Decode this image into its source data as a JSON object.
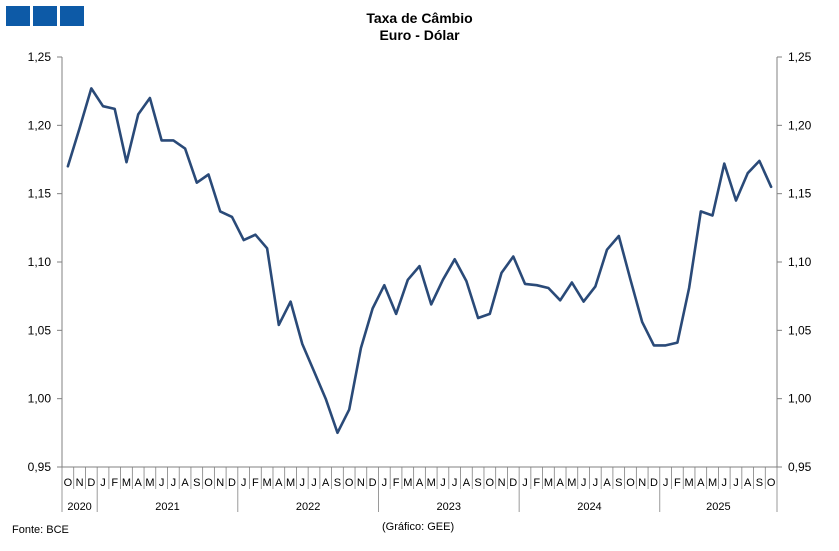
{
  "header": {
    "logo_color": "#0D5AA7"
  },
  "chart_data": {
    "type": "line",
    "title": "Taxa de Câmbio",
    "subtitle": "Euro - Dólar",
    "ylim": [
      0.95,
      1.25
    ],
    "yticks": [
      "0,95",
      "1,00",
      "1,05",
      "1,10",
      "1,15",
      "1,20",
      "1,25"
    ],
    "ytick_values": [
      0.95,
      1.0,
      1.05,
      1.1,
      1.15,
      1.2,
      1.25
    ],
    "grid": false,
    "line_color": "#2A4A78",
    "month_labels": [
      "O",
      "N",
      "D",
      "J",
      "F",
      "M",
      "A",
      "M",
      "J",
      "J",
      "A",
      "S",
      "O",
      "N",
      "D",
      "J",
      "F",
      "M",
      "A",
      "M",
      "J",
      "J",
      "A",
      "S",
      "O",
      "N",
      "D",
      "J",
      "F",
      "M",
      "A",
      "M",
      "J",
      "J",
      "A",
      "S",
      "O",
      "N",
      "D",
      "J",
      "F",
      "M",
      "A",
      "M",
      "J",
      "J",
      "A",
      "S",
      "O",
      "N",
      "D",
      "J",
      "F",
      "M",
      "A",
      "M",
      "J",
      "J",
      "A",
      "S",
      "O"
    ],
    "years": [
      {
        "label": "2020",
        "start": 0,
        "end": 2
      },
      {
        "label": "2021",
        "start": 3,
        "end": 14
      },
      {
        "label": "2022",
        "start": 15,
        "end": 26
      },
      {
        "label": "2023",
        "start": 27,
        "end": 38
      },
      {
        "label": "2024",
        "start": 39,
        "end": 50
      },
      {
        "label": "2025",
        "start": 51,
        "end": 60
      }
    ],
    "series": [
      {
        "values": [
          1.17,
          1.198,
          1.227,
          1.214,
          1.212,
          1.173,
          1.208,
          1.22,
          1.189,
          1.189,
          1.183,
          1.158,
          1.164,
          1.137,
          1.133,
          1.116,
          1.12,
          1.11,
          1.054,
          1.071,
          1.04,
          1.02,
          1.0,
          0.975,
          0.992,
          1.037,
          1.066,
          1.083,
          1.062,
          1.087,
          1.097,
          1.069,
          1.087,
          1.102,
          1.086,
          1.059,
          1.062,
          1.092,
          1.104,
          1.084,
          1.083,
          1.081,
          1.072,
          1.085,
          1.071,
          1.082,
          1.109,
          1.119,
          1.087,
          1.056,
          1.039,
          1.039,
          1.041,
          1.081,
          1.137,
          1.134,
          1.172,
          1.145,
          1.165,
          1.174,
          1.155
        ]
      }
    ]
  },
  "footer": {
    "source": "Fonte: BCE",
    "credit": "(Gráfico: GEE)"
  }
}
